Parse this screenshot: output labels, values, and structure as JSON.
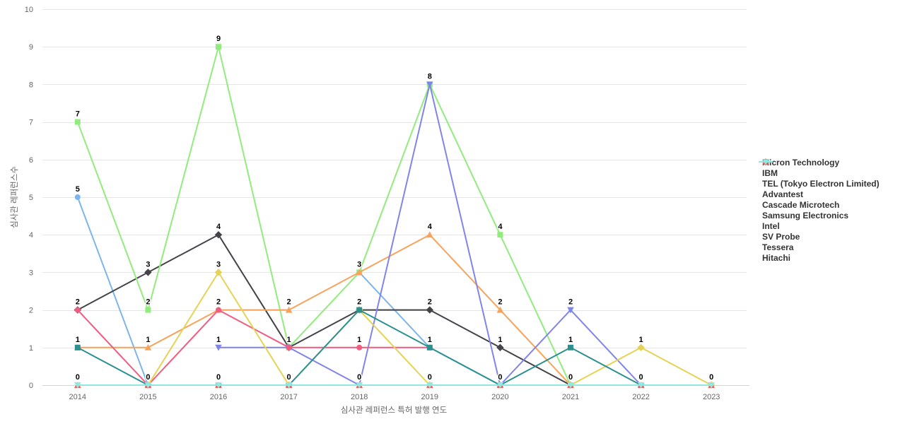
{
  "chart": {
    "y_axis_title": "심사관 레퍼런스수",
    "x_axis_title": "심사관 레퍼런스 특허 발행 연도",
    "background_color": "#ffffff",
    "grid_color": "#e6e6e6",
    "axis_line_color": "#ccd6eb",
    "tick_label_color": "#666666",
    "data_label_color": "#000000",
    "legend_text_color": "#333333"
  },
  "chart_data": {
    "type": "line",
    "title": "",
    "xlabel": "심사관 레퍼런스 특허 발행 연도",
    "ylabel": "심사관 레퍼런스수",
    "categories": [
      "2014",
      "2015",
      "2016",
      "2017",
      "2018",
      "2019",
      "2020",
      "2021",
      "2022",
      "2023"
    ],
    "ylim": [
      0,
      10
    ],
    "y_ticks": [
      0,
      1,
      2,
      3,
      4,
      5,
      6,
      7,
      8,
      9,
      10
    ],
    "grid": true,
    "legend_position": "right",
    "data_labels": true,
    "series": [
      {
        "name": "Micron Technology",
        "color": "#7cb5ec",
        "symbol": "circle",
        "values": [
          5,
          0,
          null,
          null,
          3,
          1,
          0,
          null,
          null,
          null
        ]
      },
      {
        "name": "IBM",
        "color": "#434348",
        "symbol": "diamond",
        "values": [
          2,
          3,
          4,
          1,
          2,
          2,
          1,
          0,
          null,
          null
        ]
      },
      {
        "name": "TEL (Tokyo Electron Limited)",
        "color": "#90ed7d",
        "symbol": "square",
        "values": [
          7,
          2,
          9,
          1,
          3,
          8,
          4,
          0,
          null,
          null
        ]
      },
      {
        "name": "Advantest",
        "color": "#f7a35c",
        "symbol": "triangle",
        "values": [
          1,
          1,
          2,
          2,
          3,
          4,
          2,
          0,
          null,
          null
        ]
      },
      {
        "name": "Cascade Microtech",
        "color": "#8085e9",
        "symbol": "triangle-down",
        "values": [
          null,
          null,
          1,
          1,
          0,
          8,
          0,
          2,
          0,
          null
        ]
      },
      {
        "name": "Samsung Electronics",
        "color": "#f15c80",
        "symbol": "circle",
        "values": [
          2,
          0,
          2,
          1,
          1,
          1,
          null,
          null,
          null,
          null
        ]
      },
      {
        "name": "Intel",
        "color": "#e4d354",
        "symbol": "diamond",
        "values": [
          null,
          0,
          3,
          0,
          2,
          0,
          0,
          0,
          1,
          0
        ]
      },
      {
        "name": "SV Probe",
        "color": "#2b908f",
        "symbol": "square",
        "values": [
          1,
          0,
          0,
          0,
          2,
          1,
          0,
          1,
          0,
          null
        ]
      },
      {
        "name": "Tessera",
        "color": "#f45b5b",
        "symbol": "triangle",
        "values": [
          0,
          0,
          0,
          0,
          0,
          0,
          0,
          0,
          0,
          0
        ]
      },
      {
        "name": "Hitachi",
        "color": "#91e8e1",
        "symbol": "triangle-down",
        "values": [
          0,
          0,
          0,
          0,
          0,
          0,
          0,
          0,
          0,
          0
        ]
      }
    ]
  }
}
